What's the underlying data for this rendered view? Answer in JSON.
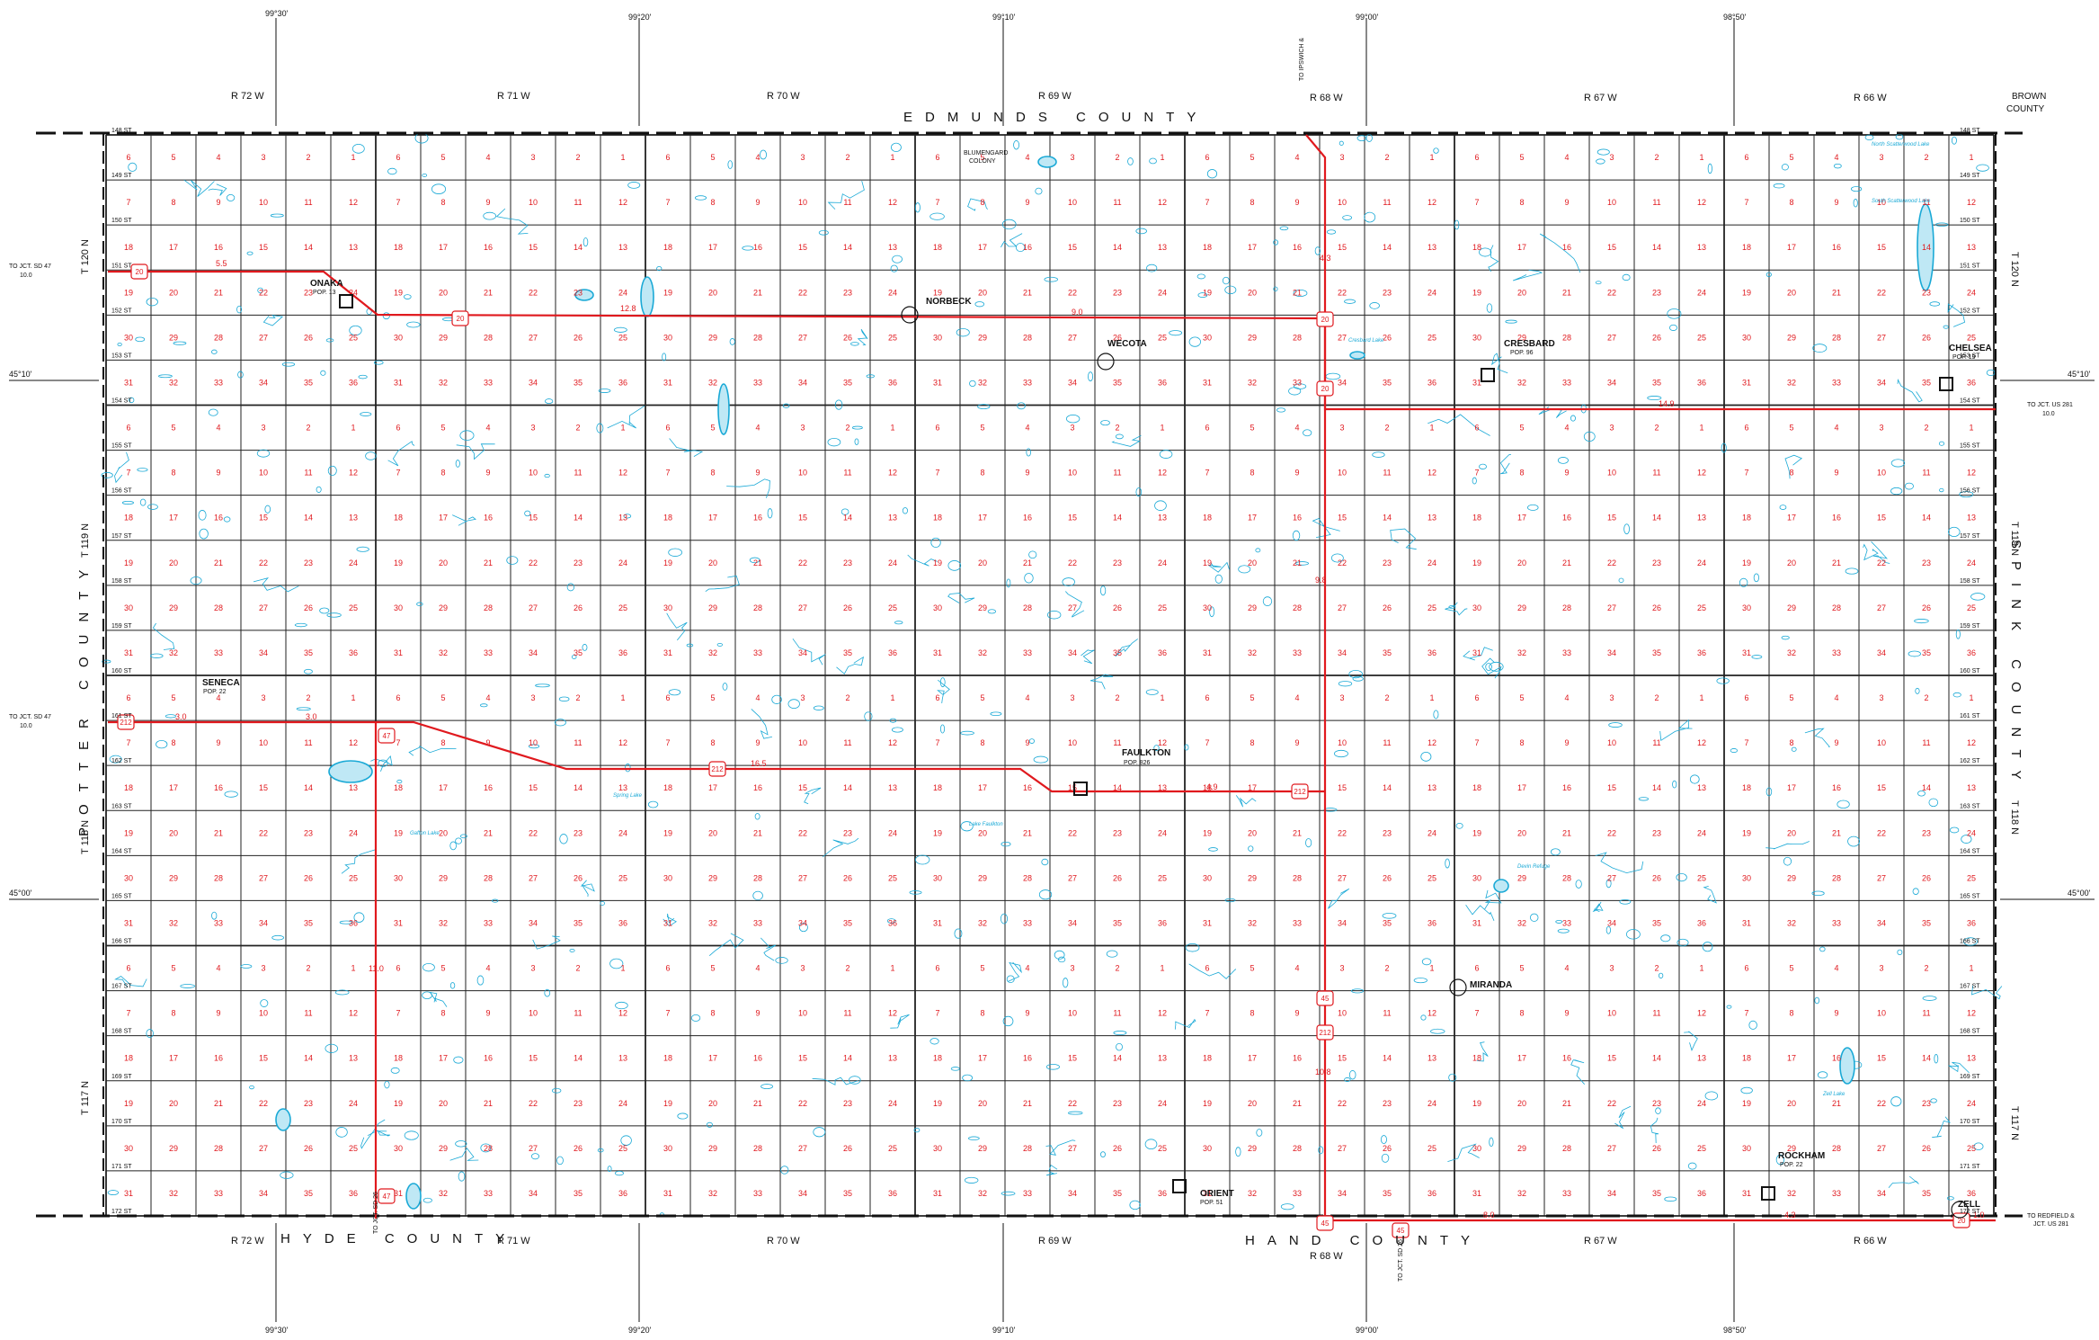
{
  "counties": {
    "north": "EDMUNDS COUNTY",
    "south_west": "HYDE COUNTY",
    "south_east": "HAND COUNTY",
    "west": "POTTER COUNTY",
    "east": "SPINK COUNTY",
    "brown_1": "BROWN",
    "brown_2": "COUNTY"
  },
  "ranges": [
    "R 72 W",
    "R 71 W",
    "R 70 W",
    "R 69 W",
    "R 68 W",
    "R 67 W",
    "R 66 W"
  ],
  "townships": [
    "T 120 N",
    "T 119 N",
    "T 118 N",
    "T 117 N"
  ],
  "longitudes": [
    "99°30'",
    "99°20'",
    "99°10'",
    "99°00'",
    "98°50'"
  ],
  "latitudes": [
    "45°10'",
    "45°00'"
  ],
  "streets": [
    "148 ST",
    "149 ST",
    "150 ST",
    "151 ST",
    "152 ST",
    "153 ST",
    "154 ST",
    "155 ST",
    "156 ST",
    "157 ST",
    "158 ST",
    "159 ST",
    "160 ST",
    "161 ST",
    "162 ST",
    "163 ST",
    "164 ST",
    "165 ST",
    "166 ST",
    "167 ST",
    "168 ST",
    "169 ST",
    "170 ST",
    "171 ST",
    "172 ST"
  ],
  "towns": [
    {
      "name": "ONAKA",
      "pop": "POP. 13"
    },
    {
      "name": "NORBECK",
      "pop": ""
    },
    {
      "name": "WECOTA",
      "pop": ""
    },
    {
      "name": "CRESBARD",
      "pop": "POP. 96"
    },
    {
      "name": "CHELSEA",
      "pop": "POP. 19"
    },
    {
      "name": "SENECA",
      "pop": "POP. 22"
    },
    {
      "name": "FAULKTON",
      "pop": "POP. 826"
    },
    {
      "name": "MIRANDA",
      "pop": ""
    },
    {
      "name": "ORIENT",
      "pop": "POP. 51"
    },
    {
      "name": "ROCKHAM",
      "pop": "POP. 22"
    },
    {
      "name": "ZELL",
      "pop": ""
    },
    {
      "name": "BLUMENGARD",
      "pop": "COLONY"
    }
  ],
  "lakes": [
    "North Scatterwood Lake",
    "South Scatterwood Lake",
    "Cresbard Lake",
    "Spring Lake",
    "Lake Faulkton",
    "Gafton Lake",
    "Zell Lake",
    "Devin Refuge"
  ],
  "route_shields": [
    "20",
    "45",
    "47",
    "212"
  ],
  "destinations": [
    {
      "line1": "TO JCT. SD 47",
      "line2": "10.0"
    },
    {
      "line1": "TO JCT. SD 47",
      "line2": "10.0"
    },
    {
      "line1": "TO JCT. US 281",
      "line2": "10.0"
    },
    {
      "line1": "TO REDFIELD &",
      "line2": "JCT. US 281"
    },
    {
      "line1": "TO JCT. SD 26",
      "line2": "6.1"
    },
    {
      "line1": "TO JCT. SD 26",
      "line2": "10.0"
    },
    {
      "line1": "TO IPSWICH &",
      "line2": "JCT. US 12"
    }
  ],
  "distances": [
    "5.5",
    "12.8",
    "9.0",
    "4.3",
    "14.9",
    "3.0",
    "3.0",
    "16.5",
    "4.9",
    "11.0",
    "9.8",
    "10.8",
    "8.0",
    "4.3",
    "1.0"
  ],
  "fas_label": "FAS",
  "colors": {
    "roads": "#111111",
    "state_routes": "#e0191e",
    "water": "#1aa9d6",
    "section_numbers": "#e0191e"
  }
}
